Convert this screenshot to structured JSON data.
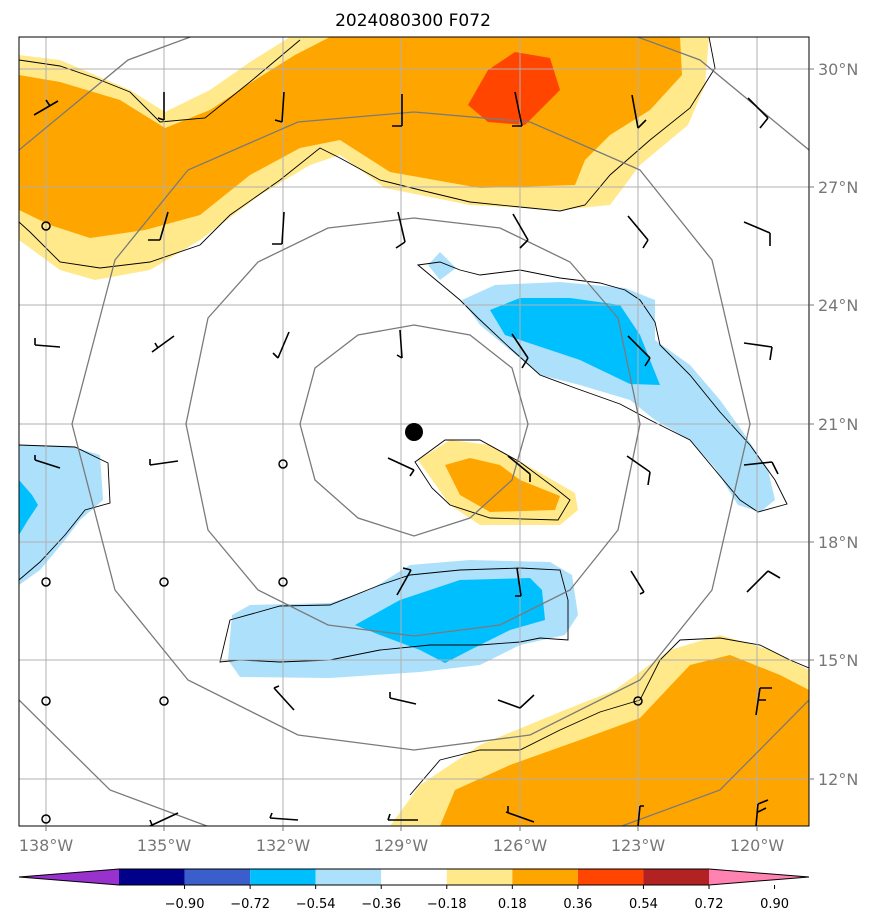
{
  "title": "2024080300 F072",
  "map": {
    "lat_labels": [
      "30°N",
      "27°N",
      "24°N",
      "21°N",
      "18°N",
      "15°N",
      "12°N"
    ],
    "lon_labels": [
      "138°W",
      "135°W",
      "132°W",
      "129°W",
      "126°W",
      "123°W",
      "120°W"
    ],
    "storm_center": "21°N 128.7°W",
    "range_rings": 4,
    "grid": true,
    "shading_field_colors": {
      "light_blue": "#ade0fb",
      "blue": "#00bfff",
      "light_yellow": "#ffe98b",
      "orange": "#ffa500",
      "red_orange": "#ff4500"
    }
  },
  "colorbar": {
    "colors": [
      "#9932cc",
      "#00008b",
      "#3a5fcd",
      "#00bfff",
      "#ade0fb",
      "#ffffff",
      "#ffe98b",
      "#ffa500",
      "#ff4500",
      "#b22222",
      "#ff82b0"
    ],
    "tick_labels": [
      "−0.90",
      "−0.72",
      "−0.54",
      "−0.36",
      "−0.18",
      "0.18",
      "0.36",
      "0.54",
      "0.72",
      "0.90"
    ]
  }
}
